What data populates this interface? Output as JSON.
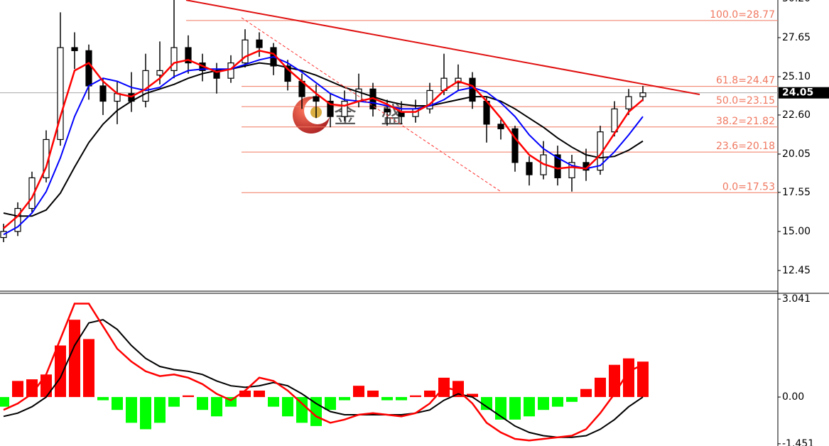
{
  "chart_data": [
    {
      "type": "candlestick",
      "xlim": [
        -0.25,
        54.5
      ],
      "ylim": [
        11.1,
        30.2
      ],
      "yticks": [
        {
          "value": 30.2,
          "label": "30.20"
        },
        27.65,
        {
          "value": 25.1,
          "label": "25.10"
        },
        {
          "value": 22.6,
          "label": "22.60"
        },
        20.05,
        17.55,
        {
          "value": 15,
          "label": "15.00"
        },
        12.45
      ],
      "last_price": 24.05,
      "open": [
        14.6,
        15.0,
        16.5,
        18.5,
        21.0,
        27.0,
        26.8,
        24.5,
        23.5,
        24.0,
        23.5,
        25.2,
        25.5,
        27.0,
        26.0,
        25.5,
        25.0,
        26.0,
        27.5,
        27.0,
        25.8,
        24.8,
        23.8,
        23.5,
        22.5,
        23.5,
        24.3,
        23.0,
        22.8,
        22.5,
        23.0,
        24.2,
        24.7,
        25.0,
        23.5,
        22.0,
        21.7,
        19.5,
        18.7,
        20.0,
        18.5,
        19.5,
        19.0,
        21.5,
        23.0,
        23.8
      ],
      "high": [
        15.5,
        16.9,
        18.9,
        21.6,
        29.3,
        28.0,
        27.2,
        25.0,
        24.8,
        25.4,
        26.6,
        27.4,
        30.2,
        27.8,
        26.6,
        26.0,
        26.5,
        28.2,
        28.0,
        27.3,
        26.2,
        25.3,
        24.6,
        24.0,
        24.2,
        25.3,
        24.7,
        23.6,
        23.5,
        23.6,
        24.7,
        26.6,
        25.9,
        25.4,
        23.8,
        22.3,
        21.9,
        19.9,
        20.9,
        20.6,
        20.0,
        20.4,
        21.9,
        23.5,
        24.3,
        24.5
      ],
      "low": [
        14.3,
        14.7,
        16.2,
        18.2,
        20.6,
        25.6,
        23.6,
        22.6,
        22.0,
        22.8,
        23.1,
        24.6,
        25.0,
        25.3,
        24.8,
        24.0,
        24.7,
        25.7,
        26.4,
        25.2,
        24.2,
        23.0,
        22.4,
        21.8,
        22.2,
        23.1,
        22.5,
        21.9,
        22.0,
        22.1,
        22.7,
        23.9,
        24.2,
        23.0,
        20.8,
        21.0,
        18.9,
        18.0,
        18.4,
        18.0,
        17.6,
        18.3,
        18.7,
        21.2,
        22.6,
        23.5
      ],
      "close": [
        15.0,
        16.5,
        18.5,
        21.0,
        27.0,
        26.8,
        24.5,
        23.5,
        24.0,
        23.5,
        25.5,
        25.5,
        27.0,
        26.0,
        25.5,
        25.0,
        26.0,
        27.5,
        27.0,
        25.8,
        24.8,
        23.8,
        23.5,
        22.5,
        23.5,
        24.3,
        23.0,
        22.8,
        22.5,
        23.0,
        24.2,
        25.0,
        25.0,
        23.5,
        22.0,
        21.7,
        19.5,
        18.7,
        20.0,
        18.5,
        19.5,
        19.0,
        21.5,
        23.0,
        23.8,
        24.05
      ],
      "series": [
        {
          "color": "#000000",
          "values": [
            16.2,
            16.0,
            16.0,
            16.4,
            17.5,
            19.2,
            20.8,
            22.0,
            22.9,
            23.5,
            24.0,
            24.3,
            24.6,
            25.0,
            25.3,
            25.5,
            25.6,
            25.8,
            26.0,
            25.9,
            25.7,
            25.5,
            25.2,
            24.8,
            24.4,
            24.1,
            23.8,
            23.5,
            23.3,
            23.2,
            23.2,
            23.4,
            23.6,
            23.8,
            23.8,
            23.5,
            23.0,
            22.4,
            21.8,
            21.1,
            20.5,
            20.0,
            19.8,
            19.9,
            20.3,
            20.9
          ]
        },
        {
          "color": "#0000ff",
          "values": [
            14.8,
            15.3,
            16.2,
            17.6,
            19.8,
            22.5,
            24.5,
            25.0,
            24.8,
            24.4,
            24.2,
            24.4,
            25.1,
            25.5,
            25.6,
            25.6,
            25.6,
            25.9,
            26.2,
            26.4,
            26.0,
            25.4,
            24.7,
            24.0,
            23.6,
            23.5,
            23.4,
            23.2,
            23.0,
            23.0,
            23.2,
            23.6,
            24.2,
            24.4,
            24.1,
            23.4,
            22.5,
            21.3,
            20.4,
            19.8,
            19.3,
            19.1,
            19.3,
            20.2,
            21.3,
            22.5
          ]
        },
        {
          "color": "#ff0000",
          "values": [
            15.2,
            16.0,
            17.2,
            19.2,
            22.5,
            25.5,
            26.0,
            24.8,
            24.0,
            23.8,
            24.3,
            25.0,
            26.0,
            26.2,
            25.8,
            25.4,
            25.6,
            26.4,
            26.8,
            26.6,
            25.6,
            24.8,
            24.0,
            23.3,
            23.2,
            23.5,
            23.7,
            23.3,
            22.8,
            22.8,
            23.3,
            24.2,
            24.8,
            24.5,
            23.5,
            22.4,
            21.1,
            20.0,
            19.4,
            19.1,
            19.2,
            19.1,
            20.0,
            21.4,
            22.8,
            23.6
          ]
        }
      ],
      "fib_levels": [
        {
          "value": 28.77,
          "label": "100.0=28.77"
        },
        {
          "value": 24.47,
          "label": "61.8=24.47"
        },
        {
          "value": 23.15,
          "label": "50.0=23.15"
        },
        {
          "value": 21.82,
          "label": "38.2=21.82"
        },
        {
          "value": 20.18,
          "label": "23.6=20.18"
        },
        {
          "value": 17.53,
          "label": "0.0=17.53"
        }
      ],
      "fib_color": "#f07860",
      "trendline": {
        "x": [
          12.85,
          49
        ],
        "values": [
          30.1,
          23.94
        ],
        "color": "#e01010"
      },
      "dashed_line": {
        "x": [
          16.75,
          35
        ],
        "values": [
          28.95,
          17.6
        ],
        "color": "#ff3030"
      },
      "watermark": "金 盛"
    },
    {
      "type": "macd",
      "ylim": [
        -1.52,
        3.22
      ],
      "yticks": [
        3.041,
        {
          "value": 0,
          "label": "0.00"
        },
        -1.451
      ],
      "up_color": "#ff0000",
      "down_color": "#00ff00",
      "histogram": [
        -0.3,
        0.5,
        0.55,
        0.7,
        1.6,
        2.4,
        1.8,
        -0.1,
        -0.4,
        -0.8,
        -1.0,
        -0.8,
        -0.3,
        0.05,
        -0.4,
        -0.6,
        -0.3,
        0.2,
        0.2,
        -0.3,
        -0.6,
        -0.8,
        -0.9,
        -0.4,
        -0.1,
        0.35,
        0.2,
        -0.1,
        -0.1,
        0.05,
        0.2,
        0.6,
        0.5,
        0.1,
        -0.4,
        -0.7,
        -0.7,
        -0.6,
        -0.4,
        -0.3,
        -0.15,
        0.25,
        0.6,
        1.0,
        1.2,
        1.1
      ],
      "series": [
        {
          "color": "#000000",
          "values": [
            -0.6,
            -0.5,
            -0.3,
            0.0,
            0.6,
            1.6,
            2.3,
            2.4,
            2.1,
            1.6,
            1.2,
            0.95,
            0.85,
            0.8,
            0.7,
            0.5,
            0.35,
            0.3,
            0.35,
            0.45,
            0.35,
            0.1,
            -0.2,
            -0.45,
            -0.55,
            -0.55,
            -0.55,
            -0.55,
            -0.55,
            -0.5,
            -0.4,
            -0.1,
            0.1,
            0.0,
            -0.3,
            -0.6,
            -0.9,
            -1.1,
            -1.2,
            -1.25,
            -1.25,
            -1.2,
            -1.0,
            -0.7,
            -0.3,
            0.0
          ]
        },
        {
          "color": "#ff0000",
          "values": [
            -0.4,
            -0.2,
            0.1,
            0.7,
            1.8,
            2.9,
            2.9,
            2.2,
            1.5,
            1.1,
            0.8,
            0.65,
            0.7,
            0.6,
            0.4,
            0.1,
            -0.1,
            0.2,
            0.6,
            0.5,
            0.2,
            -0.2,
            -0.6,
            -0.8,
            -0.7,
            -0.55,
            -0.5,
            -0.55,
            -0.6,
            -0.5,
            -0.2,
            0.3,
            0.2,
            -0.2,
            -0.8,
            -1.1,
            -1.3,
            -1.35,
            -1.3,
            -1.25,
            -1.2,
            -1.0,
            -0.5,
            0.1,
            0.8,
            1.0
          ]
        }
      ]
    }
  ]
}
